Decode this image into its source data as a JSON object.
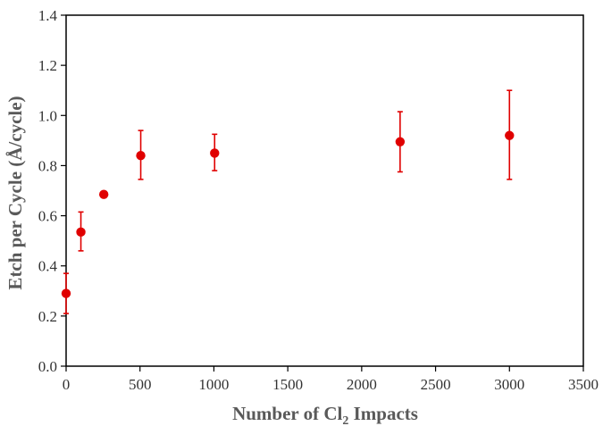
{
  "chart_data": {
    "type": "scatter",
    "title": "",
    "xlabel": {
      "pre": "Number of Cl",
      "sub": "2",
      "post": " Impacts"
    },
    "ylabel": "Etch per Cycle (Å/cycle)",
    "xlim": [
      0,
      3500
    ],
    "ylim": [
      0,
      1.4
    ],
    "x_ticks": [
      0,
      500,
      1000,
      1500,
      2000,
      2500,
      3000,
      3500
    ],
    "x_tick_labels": [
      "0",
      "500",
      "1000",
      "1500",
      "2000",
      "2500",
      "3000",
      "3500"
    ],
    "y_ticks": [
      0,
      0.2,
      0.4,
      0.6,
      0.8,
      1.0,
      1.2,
      1.4
    ],
    "y_tick_labels": [
      "0.0",
      "0.2",
      "0.4",
      "0.6",
      "0.8",
      "1.0",
      "1.2",
      "1.4"
    ],
    "grid": false,
    "legend": "none",
    "marker_color": "#e00000",
    "points": [
      {
        "x": 0,
        "y": 0.29,
        "err_low": 0.21,
        "err_high": 0.37
      },
      {
        "x": 100,
        "y": 0.535,
        "err_low": 0.46,
        "err_high": 0.615
      },
      {
        "x": 255,
        "y": 0.685,
        "err_low": null,
        "err_high": null
      },
      {
        "x": 505,
        "y": 0.84,
        "err_low": 0.745,
        "err_high": 0.94
      },
      {
        "x": 1005,
        "y": 0.85,
        "err_low": 0.78,
        "err_high": 0.925
      },
      {
        "x": 2260,
        "y": 0.895,
        "err_low": 0.775,
        "err_high": 1.015
      },
      {
        "x": 3000,
        "y": 0.92,
        "err_low": 0.745,
        "err_high": 1.1
      }
    ]
  }
}
